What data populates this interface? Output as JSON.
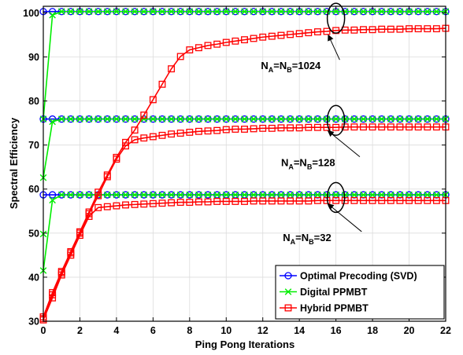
{
  "chart_data": {
    "type": "line",
    "xlabel": "Ping Pong Iterations",
    "ylabel": "Spectral Efficiency",
    "xlim": [
      0,
      22
    ],
    "ylim": [
      30,
      101.5
    ],
    "xticks": [
      0,
      2,
      4,
      6,
      8,
      10,
      12,
      14,
      16,
      18,
      20,
      22
    ],
    "yticks": [
      30,
      40,
      50,
      60,
      70,
      80,
      90,
      100
    ],
    "grid": true,
    "legend_position": "bottom-right",
    "colors": {
      "optimal": "#0000ff",
      "digital": "#00ee00",
      "hybrid": "#ff0000"
    },
    "series": [
      {
        "name": "Optimal Precoding (SVD)",
        "group": "N=1024",
        "style": "optimal",
        "marker": "circle",
        "x": [
          0,
          0.5,
          1,
          1.5,
          2,
          2.5,
          3,
          3.5,
          4,
          4.5,
          5,
          5.5,
          6,
          6.5,
          7,
          7.5,
          8,
          8.5,
          9,
          9.5,
          10,
          10.5,
          11,
          11.5,
          12,
          12.5,
          13,
          13.5,
          14,
          14.5,
          15,
          15.5,
          16,
          16.5,
          17,
          17.5,
          18,
          18.5,
          19,
          19.5,
          20,
          20.5,
          21,
          21.5,
          22
        ],
        "y": [
          100.3,
          100.3,
          100.3,
          100.3,
          100.3,
          100.3,
          100.3,
          100.3,
          100.3,
          100.3,
          100.3,
          100.3,
          100.3,
          100.3,
          100.3,
          100.3,
          100.3,
          100.3,
          100.3,
          100.3,
          100.3,
          100.3,
          100.3,
          100.3,
          100.3,
          100.3,
          100.3,
          100.3,
          100.3,
          100.3,
          100.3,
          100.3,
          100.3,
          100.3,
          100.3,
          100.3,
          100.3,
          100.3,
          100.3,
          100.3,
          100.3,
          100.3,
          100.3,
          100.3,
          100.3
        ]
      },
      {
        "name": "Optimal Precoding (SVD)",
        "group": "N=128",
        "style": "optimal",
        "marker": "circle",
        "x": [
          0,
          0.5,
          1,
          1.5,
          2,
          2.5,
          3,
          3.5,
          4,
          4.5,
          5,
          5.5,
          6,
          6.5,
          7,
          7.5,
          8,
          8.5,
          9,
          9.5,
          10,
          10.5,
          11,
          11.5,
          12,
          12.5,
          13,
          13.5,
          14,
          14.5,
          15,
          15.5,
          16,
          16.5,
          17,
          17.5,
          18,
          18.5,
          19,
          19.5,
          20,
          20.5,
          21,
          21.5,
          22
        ],
        "y": [
          75.9,
          75.9,
          75.9,
          75.9,
          75.9,
          75.9,
          75.9,
          75.9,
          75.9,
          75.9,
          75.9,
          75.9,
          75.9,
          75.9,
          75.9,
          75.9,
          75.9,
          75.9,
          75.9,
          75.9,
          75.9,
          75.9,
          75.9,
          75.9,
          75.9,
          75.9,
          75.9,
          75.9,
          75.9,
          75.9,
          75.9,
          75.9,
          75.9,
          75.9,
          75.9,
          75.9,
          75.9,
          75.9,
          75.9,
          75.9,
          75.9,
          75.9,
          75.9,
          75.9,
          75.9
        ]
      },
      {
        "name": "Optimal Precoding (SVD)",
        "group": "N=32",
        "style": "optimal",
        "marker": "circle",
        "x": [
          0,
          0.5,
          1,
          1.5,
          2,
          2.5,
          3,
          3.5,
          4,
          4.5,
          5,
          5.5,
          6,
          6.5,
          7,
          7.5,
          8,
          8.5,
          9,
          9.5,
          10,
          10.5,
          11,
          11.5,
          12,
          12.5,
          13,
          13.5,
          14,
          14.5,
          15,
          15.5,
          16,
          16.5,
          17,
          17.5,
          18,
          18.5,
          19,
          19.5,
          20,
          20.5,
          21,
          21.5,
          22
        ],
        "y": [
          58.7,
          58.7,
          58.7,
          58.7,
          58.7,
          58.7,
          58.7,
          58.7,
          58.7,
          58.7,
          58.7,
          58.7,
          58.7,
          58.7,
          58.7,
          58.7,
          58.7,
          58.7,
          58.7,
          58.7,
          58.7,
          58.7,
          58.7,
          58.7,
          58.7,
          58.7,
          58.7,
          58.7,
          58.7,
          58.7,
          58.7,
          58.7,
          58.7,
          58.7,
          58.7,
          58.7,
          58.7,
          58.7,
          58.7,
          58.7,
          58.7,
          58.7,
          58.7,
          58.7,
          58.7
        ]
      },
      {
        "name": "Digital PPMBT",
        "group": "N=1024",
        "style": "digital",
        "marker": "x",
        "x": [
          0,
          0.5,
          1,
          1.5,
          2,
          2.5,
          3,
          3.5,
          4,
          4.5,
          5,
          5.5,
          6,
          6.5,
          7,
          7.5,
          8,
          8.5,
          9,
          9.5,
          10,
          10.5,
          11,
          11.5,
          12,
          12.5,
          13,
          13.5,
          14,
          14.5,
          15,
          15.5,
          16,
          16.5,
          17,
          17.5,
          18,
          18.5,
          19,
          19.5,
          20,
          20.5,
          21,
          21.5,
          22
        ],
        "y": [
          75.9,
          99.5,
          100.3,
          100.3,
          100.3,
          100.3,
          100.3,
          100.3,
          100.3,
          100.3,
          100.3,
          100.3,
          100.3,
          100.3,
          100.3,
          100.3,
          100.3,
          100.3,
          100.3,
          100.3,
          100.3,
          100.3,
          100.3,
          100.3,
          100.3,
          100.3,
          100.3,
          100.3,
          100.3,
          100.3,
          100.3,
          100.3,
          100.3,
          100.3,
          100.3,
          100.3,
          100.3,
          100.3,
          100.3,
          100.3,
          100.3,
          100.3,
          100.3,
          100.3,
          100.3
        ]
      },
      {
        "name": "Digital PPMBT",
        "group": "N=128",
        "style": "digital",
        "marker": "x",
        "x": [
          0,
          0.5,
          1,
          1.5,
          2,
          2.5,
          3,
          3.5,
          4,
          4.5,
          5,
          5.5,
          6,
          6.5,
          7,
          7.5,
          8,
          8.5,
          9,
          9.5,
          10,
          10.5,
          11,
          11.5,
          12,
          12.5,
          13,
          13.5,
          14,
          14.5,
          15,
          15.5,
          16,
          16.5,
          17,
          17.5,
          18,
          18.5,
          19,
          19.5,
          20,
          20.5,
          21,
          21.5,
          22
        ],
        "y": [
          62.6,
          75.3,
          75.9,
          75.9,
          75.9,
          75.9,
          75.9,
          75.9,
          75.9,
          75.9,
          75.9,
          75.9,
          75.9,
          75.9,
          75.9,
          75.9,
          75.9,
          75.9,
          75.9,
          75.9,
          75.9,
          75.9,
          75.9,
          75.9,
          75.9,
          75.9,
          75.9,
          75.9,
          75.9,
          75.9,
          75.9,
          75.9,
          75.9,
          75.9,
          75.9,
          75.9,
          75.9,
          75.9,
          75.9,
          75.9,
          75.9,
          75.9,
          75.9,
          75.9,
          75.9
        ]
      },
      {
        "name": "Digital PPMBT",
        "group": "N=32",
        "style": "digital",
        "marker": "x",
        "x": [
          0,
          0.5,
          1,
          1.5,
          2,
          2.5,
          3,
          3.5,
          4,
          4.5,
          5,
          5.5,
          6,
          6.5,
          7,
          7.5,
          8,
          8.5,
          9,
          9.5,
          10,
          10.5,
          11,
          11.5,
          12,
          12.5,
          13,
          13.5,
          14,
          14.5,
          15,
          15.5,
          16,
          16.5,
          17,
          17.5,
          18,
          18.5,
          19,
          19.5,
          20,
          20.5,
          21,
          21.5,
          22
        ],
        "y": [
          41.5,
          57.5,
          58.7,
          58.7,
          58.7,
          58.7,
          58.7,
          58.7,
          58.7,
          58.7,
          58.7,
          58.7,
          58.7,
          58.7,
          58.7,
          58.7,
          58.7,
          58.7,
          58.7,
          58.7,
          58.7,
          58.7,
          58.7,
          58.7,
          58.7,
          58.7,
          58.7,
          58.7,
          58.7,
          58.7,
          58.7,
          58.7,
          58.7,
          58.7,
          58.7,
          58.7,
          58.7,
          58.7,
          58.7,
          58.7,
          58.7,
          58.7,
          58.7,
          58.7,
          58.7
        ]
      },
      {
        "name": "Digital PPMBT",
        "group": "N=32-start",
        "style": "digital",
        "marker": "x",
        "x": [
          0
        ],
        "y": [
          49.8
        ]
      },
      {
        "name": "Hybrid PPMBT",
        "group": "N=1024",
        "style": "hybrid",
        "marker": "square",
        "x": [
          0,
          0.5,
          1,
          1.5,
          2,
          2.5,
          3,
          3.5,
          4,
          4.5,
          5,
          5.5,
          6,
          6.5,
          7,
          7.5,
          8,
          8.5,
          9,
          9.5,
          10,
          10.5,
          11,
          11.5,
          12,
          12.5,
          13,
          13.5,
          14,
          14.5,
          15,
          15.5,
          16,
          16.5,
          17,
          17.5,
          18,
          18.5,
          19,
          19.5,
          20,
          20.5,
          21,
          21.5,
          22
        ],
        "y": [
          31,
          36.5,
          41.3,
          45.8,
          50.3,
          54.8,
          59.3,
          63.2,
          67.2,
          70.6,
          73.4,
          76.8,
          80.3,
          83.8,
          87.3,
          90.1,
          91.6,
          92.1,
          92.6,
          92.9,
          93.3,
          93.6,
          93.9,
          94.2,
          94.5,
          94.7,
          94.9,
          95.1,
          95.3,
          95.5,
          95.7,
          95.8,
          96,
          96.1,
          96.1,
          96.2,
          96.2,
          96.3,
          96.3,
          96.3,
          96.4,
          96.4,
          96.4,
          96.4,
          96.5
        ]
      },
      {
        "name": "Hybrid PPMBT",
        "group": "N=128",
        "style": "hybrid",
        "marker": "square",
        "x": [
          0,
          0.5,
          1,
          1.5,
          2,
          2.5,
          3,
          3.5,
          4,
          4.5,
          5,
          5.5,
          6,
          6.5,
          7,
          7.5,
          8,
          8.5,
          9,
          9.5,
          10,
          10.5,
          11,
          11.5,
          12,
          12.5,
          13,
          13.5,
          14,
          14.5,
          15,
          15.5,
          16,
          16.5,
          17,
          17.5,
          18,
          18.5,
          19,
          19.5,
          20,
          20.5,
          21,
          21.5,
          22
        ],
        "y": [
          30.6,
          36,
          41,
          45.5,
          50,
          54.4,
          58.5,
          62.8,
          66.8,
          69.8,
          71.2,
          71.6,
          71.9,
          72.2,
          72.5,
          72.7,
          72.9,
          73.1,
          73.2,
          73.3,
          73.5,
          73.6,
          73.6,
          73.7,
          73.8,
          73.8,
          73.9,
          73.9,
          73.9,
          74,
          74,
          74,
          74,
          74.1,
          74.1,
          74.1,
          74.1,
          74.1,
          74.1,
          74.1,
          74.1,
          74.1,
          74.1,
          74.1,
          74.1
        ]
      },
      {
        "name": "Hybrid PPMBT",
        "group": "N=32",
        "style": "hybrid",
        "marker": "square",
        "x": [
          0,
          0.5,
          1,
          1.5,
          2,
          2.5,
          3,
          3.5,
          4,
          4.5,
          5,
          5.5,
          6,
          6.5,
          7,
          7.5,
          8,
          8.5,
          9,
          9.5,
          10,
          10.5,
          11,
          11.5,
          12,
          12.5,
          13,
          13.5,
          14,
          14.5,
          15,
          15.5,
          16,
          16.5,
          17,
          17.5,
          18,
          18.5,
          19,
          19.5,
          20,
          20.5,
          21,
          21.5,
          22
        ],
        "y": [
          30.3,
          35.3,
          40.5,
          45,
          49.5,
          53.8,
          55.8,
          56,
          56.2,
          56.4,
          56.5,
          56.6,
          56.7,
          56.8,
          56.9,
          57,
          57,
          57.1,
          57.1,
          57.2,
          57.2,
          57.2,
          57.2,
          57.3,
          57.3,
          57.3,
          57.3,
          57.3,
          57.3,
          57.3,
          57.4,
          57.4,
          57.4,
          57.4,
          57.4,
          57.4,
          57.4,
          57.4,
          57.4,
          57.4,
          57.4,
          57.4,
          57.4,
          57.4,
          57.4
        ]
      }
    ],
    "legend": [
      "Optimal Precoding (SVD)",
      "Digital PPMBT",
      "Hybrid PPMBT"
    ],
    "annotations": [
      {
        "label": "N_A=N_B=1024",
        "base": "N",
        "sub1": "A",
        "mid": "=N",
        "sub2": "B",
        "tail": "=1024",
        "text_at": [
          11.9,
          87.2
        ],
        "ellipse_center": [
          16.0,
          98.8
        ],
        "arrow_tip": [
          15.6,
          94.8
        ]
      },
      {
        "label": "N_A=N_B=128",
        "base": "N",
        "sub1": "A",
        "mid": "=N",
        "sub2": "B",
        "tail": "=128",
        "text_at": [
          13.0,
          65.2
        ],
        "ellipse_center": [
          16.0,
          75.6
        ],
        "arrow_tip": [
          15.6,
          73.1
        ]
      },
      {
        "label": "N_A=N_B=32",
        "base": "N",
        "sub1": "A",
        "mid": "=N",
        "sub2": "B",
        "tail": "=32",
        "text_at": [
          13.1,
          48.2
        ],
        "ellipse_center": [
          16.0,
          58.1
        ],
        "arrow_tip": [
          15.6,
          56.5
        ]
      }
    ]
  }
}
